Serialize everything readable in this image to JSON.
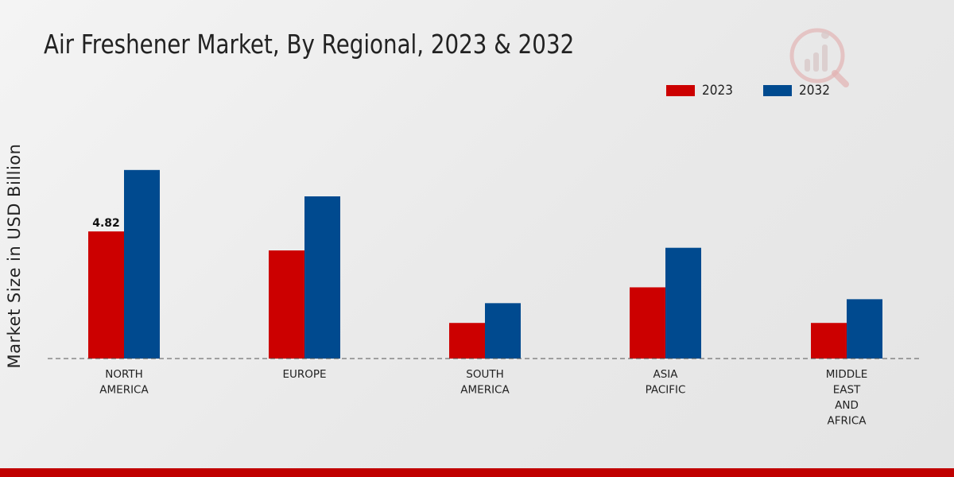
{
  "chart_data": {
    "type": "bar",
    "title": "Air Freshener Market, By Regional, 2023 & 2032",
    "xlabel": "",
    "ylabel": "Market Size in USD Billion",
    "categories": [
      "NORTH\nAMERICA",
      "EUROPE",
      "SOUTH\nAMERICA",
      "ASIA\nPACIFIC",
      "MIDDLE\nEAST\nAND\nAFRICA"
    ],
    "series": [
      {
        "name": "2023",
        "color": "#cc0000",
        "values": [
          4.82,
          4.1,
          1.35,
          2.7,
          1.35
        ]
      },
      {
        "name": "2032",
        "color": "#004a8f",
        "values": [
          7.15,
          6.15,
          2.1,
          4.2,
          2.25
        ]
      }
    ],
    "data_labels": [
      {
        "series": 0,
        "index": 0,
        "text": "4.82"
      }
    ],
    "ylim": [
      0,
      12.33
    ],
    "grid": false,
    "legend_position": "top-right"
  },
  "colors": {
    "accent": "#cc0000",
    "secondary": "#004a8f",
    "footer": "#c00000"
  },
  "logo": {
    "icon": "market-research-logo-icon"
  }
}
